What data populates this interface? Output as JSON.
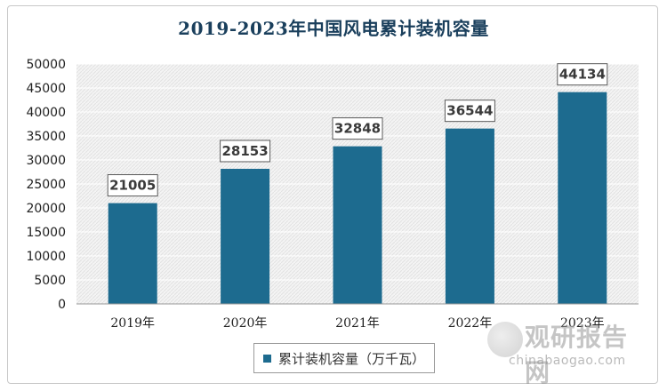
{
  "chart_data": {
    "type": "bar",
    "title": "2019-2023年中国风电累计装机容量",
    "categories": [
      "2019年",
      "2020年",
      "2021年",
      "2022年",
      "2023年"
    ],
    "series": [
      {
        "name": "累计装机容量（万千瓦）",
        "values": [
          21005,
          28153,
          32848,
          36544,
          44134
        ],
        "color": "#1d6b8f"
      }
    ],
    "ylim": [
      0,
      50000
    ],
    "yticks": [
      0,
      5000,
      10000,
      15000,
      20000,
      25000,
      30000,
      35000,
      40000,
      45000,
      50000
    ],
    "grid": true,
    "legend_position": "bottom",
    "data_labels": true
  },
  "watermark": {
    "title": "观研报告网",
    "subtitle": "chinabaogao.com"
  }
}
